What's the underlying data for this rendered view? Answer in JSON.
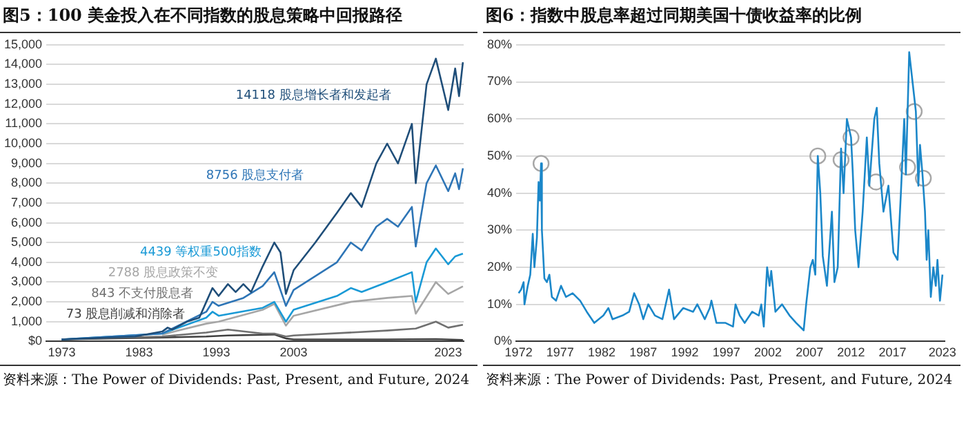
{
  "chart_data": [
    {
      "type": "line",
      "title": "图5：100 美金投入在不同指数的股息策略中回报路径",
      "annotations": [
        "资料来源：The Power of Dividends: Past, Present, and Future, 2024"
      ],
      "xlim": [
        1971,
        2025
      ],
      "xticks": [
        1973,
        1983,
        1993,
        2003,
        2023
      ],
      "ylim": [
        0,
        15000
      ],
      "yticks": [
        {
          "value": 0,
          "label": "$0"
        },
        {
          "value": 1000,
          "label": "1,000"
        },
        {
          "value": 2000,
          "label": "2,000"
        },
        {
          "value": 3000,
          "label": "3,000"
        },
        {
          "value": 4000,
          "label": "4,000"
        },
        {
          "value": 5000,
          "label": "5,000"
        },
        {
          "value": 6000,
          "label": "6,000"
        },
        {
          "value": 7000,
          "label": "7,000"
        },
        {
          "value": 8000,
          "label": "8,000"
        },
        {
          "value": 9000,
          "label": "9,000"
        },
        {
          "value": 10000,
          "label": "10,000"
        },
        {
          "value": 11000,
          "label": "11,000"
        },
        {
          "value": 12000,
          "label": "12,000"
        },
        {
          "value": 13000,
          "label": "13,000"
        },
        {
          "value": 14000,
          "label": "14,000"
        },
        {
          "value": 15000,
          "label": "15,000"
        }
      ],
      "grid": "y",
      "legend": false,
      "marker": "none",
      "line_style": "solid",
      "series": [
        {
          "name": "14118 股息增长者和发起者",
          "color": "#1f4e79",
          "x": [
            1973,
            1982.5,
            1986,
            1986.7,
            1987.3,
            1989.2,
            1990.8,
            1991.7,
            1992.5,
            1993.3,
            1994.5,
            1995.5,
            1996.5,
            1997.5,
            1999,
            2000.5,
            2001.3,
            2002,
            2003,
            2005.8,
            2008.6,
            2010.4,
            2011.8,
            2013.7,
            2015.1,
            2016.5,
            2018.3,
            2018.8,
            2020.2,
            2021.4,
            2023,
            2023.9,
            2024.4,
            2024.9
          ],
          "values": [
            100,
            250,
            500,
            700,
            600,
            1000,
            1200,
            2000,
            2700,
            2300,
            2900,
            2500,
            2900,
            2500,
            3800,
            5000,
            4500,
            2400,
            3600,
            5000,
            6500,
            7500,
            6800,
            9000,
            10000,
            9000,
            11000,
            8000,
            13000,
            14300,
            11700,
            13800,
            12400,
            14118
          ]
        },
        {
          "name": "8756 股息支付者",
          "color": "#2e75b6",
          "x": [
            1973,
            1986,
            1991.7,
            1992.5,
            1993.3,
            1996.5,
            1999,
            2000.5,
            2002,
            2003,
            2008.6,
            2010.4,
            2011.8,
            2013.7,
            2015.1,
            2016.5,
            2018.3,
            2018.8,
            2020.2,
            2021.4,
            2023,
            2023.9,
            2024.4,
            2024.9
          ],
          "values": [
            100,
            400,
            1500,
            2000,
            1800,
            2200,
            2800,
            3500,
            1800,
            2600,
            4000,
            5000,
            4600,
            5800,
            6200,
            5800,
            6800,
            4800,
            8000,
            8900,
            7600,
            8500,
            7700,
            8756
          ]
        },
        {
          "name": "4439 等权重500指数",
          "color": "#1a9ad6",
          "x": [
            1973,
            1986,
            1991.7,
            1992.5,
            1993.3,
            1999,
            2000.5,
            2002,
            2003,
            2008.6,
            2010.4,
            2011.8,
            2015.1,
            2018.3,
            2018.8,
            2020.2,
            2021.4,
            2023,
            2023.9,
            2024.9
          ],
          "values": [
            100,
            400,
            1200,
            1500,
            1300,
            1700,
            2000,
            1000,
            1600,
            2300,
            2700,
            2500,
            3000,
            3500,
            2000,
            4000,
            4700,
            3900,
            4300,
            4439
          ]
        },
        {
          "name": "2788 股息政策不变",
          "color": "#a6a6a6",
          "x": [
            1986,
            1991.7,
            1993.3,
            1999,
            2000.5,
            2002,
            2003,
            2010.4,
            2015.1,
            2018.3,
            2018.8,
            2021.4,
            2023,
            2024.9
          ],
          "values": [
            350,
            900,
            1000,
            1600,
            1900,
            800,
            1300,
            2000,
            2200,
            2300,
            1400,
            3000,
            2400,
            2788
          ]
        },
        {
          "name": "843 不支付股息者",
          "color": "#707070",
          "x": [
            1973,
            1986,
            1991.7,
            1994.5,
            1999,
            2000.5,
            2002,
            2003,
            2015.1,
            2018.8,
            2021.4,
            2023,
            2024.9
          ],
          "values": [
            100,
            250,
            450,
            600,
            400,
            400,
            250,
            300,
            550,
            650,
            1000,
            700,
            843
          ]
        },
        {
          "name": "73 股息削减和消除者",
          "color": "#404040",
          "x": [
            1973,
            1986,
            1991.7,
            1994.5,
            2000.5,
            2002,
            2003,
            2015.1,
            2021.4,
            2024.9
          ],
          "values": [
            100,
            200,
            250,
            300,
            350,
            150,
            100,
            100,
            120,
            73
          ]
        }
      ]
    },
    {
      "type": "line",
      "title": "图6：指数中股息率超过同期美国十债收益率的比例",
      "annotations": [
        "资料来源：The Power of Dividends: Past, Present, and Future, 2024"
      ],
      "xlim": [
        1971.7,
        2023.3
      ],
      "xticks": [
        1972,
        1977,
        1982,
        1987,
        1992,
        1997,
        2002,
        2007,
        2012,
        2017,
        2023
      ],
      "ylim": [
        0,
        80
      ],
      "yticks": [
        {
          "value": 0,
          "label": "0%"
        },
        {
          "value": 10,
          "label": "10%"
        },
        {
          "value": 20,
          "label": "20%"
        },
        {
          "value": 30,
          "label": "30%"
        },
        {
          "value": 40,
          "label": "40%"
        },
        {
          "value": 50,
          "label": "50%"
        },
        {
          "value": 60,
          "label": "60%"
        },
        {
          "value": 70,
          "label": "70%"
        },
        {
          "value": 80,
          "label": "80%"
        }
      ],
      "grid": "y",
      "legend": false,
      "line_style": "solid",
      "series": [
        {
          "color": "#1b87c9",
          "marker": "none",
          "x": [
            1972.0,
            1972.3,
            1972.6,
            1972.7,
            1973.1,
            1973.4,
            1973.7,
            1973.9,
            1974.2,
            1974.4,
            1974.55,
            1974.7,
            1974.8,
            1975.1,
            1975.4,
            1975.7,
            1976.0,
            1976.5,
            1977.1,
            1977.7,
            1978.5,
            1979.4,
            1980.2,
            1981.1,
            1982.2,
            1982.8,
            1983.3,
            1984.5,
            1985.3,
            1985.9,
            1986.5,
            1987.0,
            1987.6,
            1988.4,
            1989.3,
            1990.1,
            1990.7,
            1991.8,
            1993.0,
            1993.5,
            1994.4,
            1995.0,
            1995.2,
            1995.8,
            1996.9,
            1997.8,
            1998.1,
            1998.6,
            1999.2,
            2000.1,
            2000.9,
            2001.2,
            2001.5,
            2001.9,
            2002.2,
            2002.4,
            2002.9,
            2003.7,
            2004.6,
            2005.4,
            2006.3,
            2006.6,
            2007.1,
            2007.4,
            2007.7,
            2008.0,
            2008.3,
            2008.6,
            2009.1,
            2009.7,
            2010.0,
            2010.4,
            2010.8,
            2011.1,
            2011.5,
            2012.0,
            2012.2,
            2012.5,
            2012.9,
            2013.4,
            2013.9,
            2014.2,
            2014.8,
            2015.1,
            2015.4,
            2015.9,
            2016.5,
            2017.1,
            2017.6,
            2018.0,
            2018.4,
            2018.6,
            2019.0,
            2019.4,
            2019.8,
            2020.1,
            2020.3,
            2020.6,
            2020.9,
            2021.1,
            2021.3,
            2021.6,
            2021.9,
            2022.2,
            2022.4,
            2022.7,
            2023.0
          ],
          "values": [
            13,
            14,
            16,
            10,
            15,
            18,
            29,
            20,
            28,
            43,
            38,
            48,
            30,
            17,
            16,
            18,
            12,
            11,
            15,
            12,
            13,
            11,
            8,
            5,
            7,
            9,
            6,
            7,
            8,
            13,
            10,
            6,
            10,
            7,
            6,
            14,
            6,
            9,
            8,
            10,
            6,
            9,
            11,
            5,
            5,
            4,
            10,
            7,
            5,
            8,
            7,
            10,
            4,
            20,
            15,
            19,
            8,
            10,
            7,
            5,
            3,
            10,
            20,
            22,
            18,
            50,
            40,
            23,
            15,
            35,
            16,
            20,
            52,
            40,
            60,
            55,
            46,
            30,
            20,
            35,
            55,
            42,
            60,
            63,
            48,
            35,
            42,
            24,
            22,
            40,
            60,
            45,
            78,
            70,
            62,
            42,
            53,
            45,
            35,
            22,
            30,
            12,
            20,
            15,
            22,
            11,
            18
          ]
        },
        {
          "type": "scatter",
          "color": "#a6a6a6",
          "marker": "circle",
          "x": [
            1974.7,
            2008.0,
            2010.8,
            2012.0,
            2015.0,
            2018.8,
            2019.6,
            2020.7
          ],
          "values": [
            48,
            50,
            49,
            55,
            43,
            47,
            62,
            44
          ]
        }
      ]
    }
  ]
}
